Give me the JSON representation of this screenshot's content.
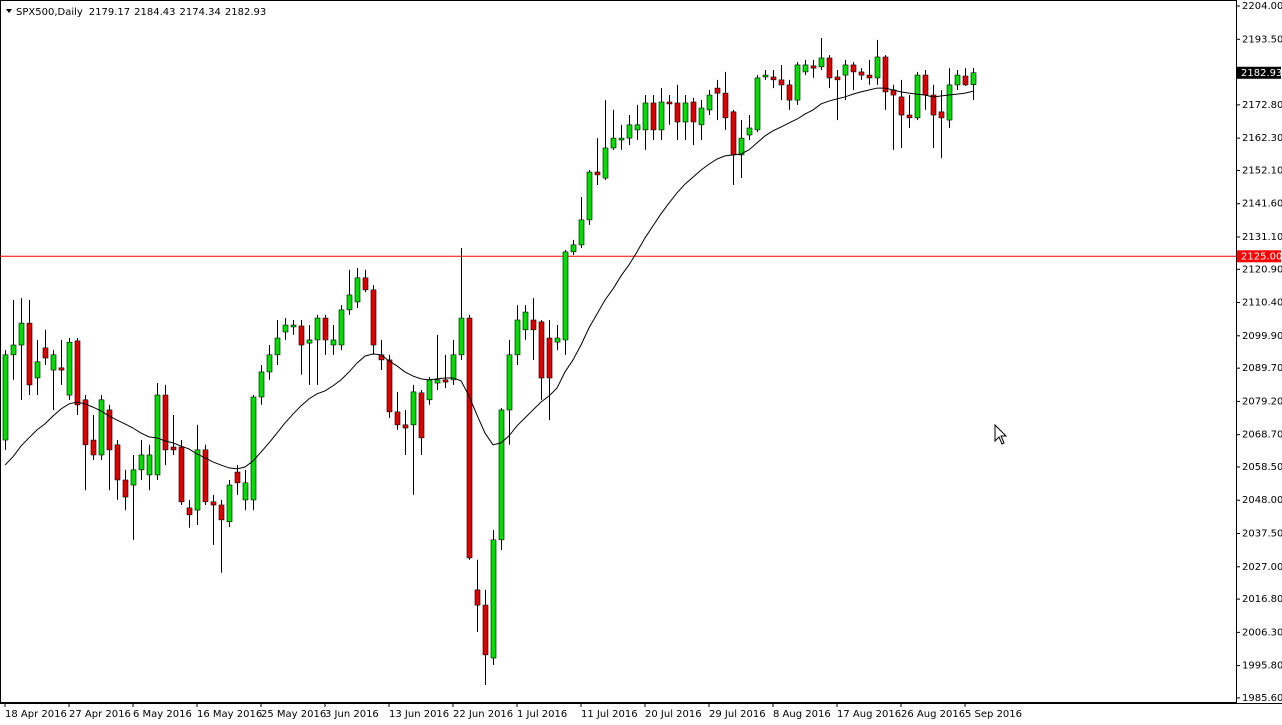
{
  "chart_data": {
    "type": "candlestick",
    "title": "SPX500,Daily",
    "up_color": "#00dd00",
    "down_color": "#dd0000",
    "wick_color": "#000000",
    "categories": [
      "18 Apr 2016",
      null,
      null,
      null,
      null,
      null,
      null,
      null,
      "27 Apr 2016",
      null,
      null,
      null,
      null,
      null,
      null,
      null,
      "6 May 2016",
      null,
      null,
      null,
      null,
      null,
      null,
      null,
      "16 May 2016",
      null,
      null,
      null,
      null,
      null,
      null,
      null,
      "25 May 2016",
      null,
      null,
      null,
      null,
      null,
      null,
      null,
      "3 Jun 2016",
      null,
      null,
      null,
      null,
      null,
      null,
      null,
      "13 Jun 2016",
      null,
      null,
      null,
      null,
      null,
      null,
      null,
      "22 Jun 2016",
      null,
      null,
      null,
      null,
      null,
      null,
      null,
      "1 Jul 2016",
      null,
      null,
      null,
      null,
      null,
      null,
      null,
      "11 Jul 2016",
      null,
      null,
      null,
      null,
      null,
      null,
      null,
      "20 Jul 2016",
      null,
      null,
      null,
      null,
      null,
      null,
      null,
      "29 Jul 2016",
      null,
      null,
      null,
      null,
      null,
      null,
      null,
      "8 Aug 2016",
      null,
      null,
      null,
      null,
      null,
      null,
      null,
      "17 Aug 2016",
      null,
      null,
      null,
      null,
      null,
      null,
      null,
      "26 Aug 2016",
      null,
      null,
      null,
      null,
      null,
      null,
      null,
      "5 Sep 2016",
      null
    ],
    "open": [
      2067.0,
      2093.9,
      2097.0,
      2103.9,
      2086.6,
      2096.1,
      2089.1,
      2089.8,
      2081.2,
      2098.3,
      2079.7,
      2067.0,
      2062.3,
      2076.5,
      2065.5,
      2054.4,
      2052.8,
      2057.6,
      2056.0,
      2056.0,
      2081.2,
      2064.8,
      2064.8,
      2045.6,
      2044.9,
      2063.9,
      2047.5,
      2046.5,
      2041.2,
      2056.9,
      2048.1,
      2048.1,
      2080.6,
      2088.5,
      2093.9,
      2101.1,
      2102.7,
      2103.0,
      2097.6,
      2098.6,
      2105.5,
      2097.0,
      2097.0,
      2108.1,
      2110.6,
      2118.2,
      2114.4,
      2093.9,
      2092.3,
      2075.9,
      2071.8,
      2071.8,
      2081.9,
      2079.7,
      2085.0,
      2086.0,
      2086.0,
      2093.9,
      2105.5,
      2019.7,
      2014.9,
      1998.2,
      2035.5,
      2076.5,
      2093.9,
      2101.8,
      2104.9,
      2104.3,
      2099.2,
      2097.9,
      2098.6,
      2126.4,
      2128.6,
      2136.5,
      2151.6,
      2149.7,
      2159.2,
      2161.7,
      2162.3,
      2164.9,
      2164.9,
      2173.4,
      2164.9,
      2173.7,
      2173.4,
      2167.4,
      2173.7,
      2166.5,
      2171.2,
      2178.1,
      2176.5,
      2170.6,
      2157.0,
      2163.3,
      2164.9,
      2181.6,
      2181.6,
      2180.7,
      2179.1,
      2174.3,
      2183.2,
      2185.1,
      2184.8,
      2187.6,
      2181.6,
      2182.2,
      2185.4,
      2183.2,
      2182.2,
      2181.3,
      2187.9,
      2177.5,
      2175.3,
      2169.6,
      2168.7,
      2182.2,
      2175.9,
      2170.6,
      2168.0,
      2179.1,
      2181.9,
      2179.17
    ],
    "high": [
      2095.4,
      2111.2,
      2111.8,
      2111.2,
      2098.6,
      2101.8,
      2095.4,
      2098.6,
      2099.2,
      2099.2,
      2081.2,
      2074.9,
      2081.2,
      2078.1,
      2067.0,
      2057.6,
      2062.3,
      2067.0,
      2065.5,
      2085.0,
      2084.4,
      2074.9,
      2067.0,
      2048.1,
      2071.8,
      2065.5,
      2049.7,
      2048.1,
      2054.4,
      2059.1,
      2057.6,
      2081.2,
      2090.7,
      2097.0,
      2104.9,
      2105.5,
      2104.9,
      2104.9,
      2103.3,
      2106.5,
      2106.5,
      2103.3,
      2109.6,
      2120.7,
      2121.3,
      2120.7,
      2115.9,
      2098.6,
      2093.9,
      2082.2,
      2076.5,
      2084.4,
      2082.8,
      2086.9,
      2100.2,
      2093.9,
      2098.6,
      2127.6,
      2106.5,
      2029.2,
      2019.7,
      2038.6,
      2077.1,
      2098.6,
      2109.6,
      2109.6,
      2111.8,
      2104.9,
      2104.9,
      2103.3,
      2127.0,
      2130.2,
      2143.7,
      2152.2,
      2162.3,
      2174.3,
      2171.2,
      2166.5,
      2169.6,
      2172.8,
      2175.9,
      2175.9,
      2178.1,
      2175.9,
      2179.1,
      2175.9,
      2175.0,
      2174.3,
      2177.5,
      2180.7,
      2183.2,
      2171.2,
      2168.0,
      2169.6,
      2182.2,
      2183.8,
      2183.8,
      2185.4,
      2180.7,
      2186.3,
      2187.0,
      2187.0,
      2193.9,
      2188.5,
      2183.8,
      2187.0,
      2186.3,
      2184.4,
      2187.0,
      2193.3,
      2188.5,
      2179.1,
      2180.7,
      2175.9,
      2183.2,
      2183.8,
      2179.1,
      2177.5,
      2184.4,
      2183.8,
      2184.4,
      2184.43
    ],
    "low": [
      2063.9,
      2086.0,
      2079.7,
      2081.2,
      2081.2,
      2090.7,
      2076.5,
      2084.4,
      2079.7,
      2074.9,
      2051.2,
      2060.7,
      2060.7,
      2051.2,
      2048.1,
      2044.9,
      2035.5,
      2054.4,
      2051.2,
      2054.4,
      2059.1,
      2062.3,
      2046.5,
      2039.3,
      2040.2,
      2046.5,
      2033.9,
      2025.1,
      2039.6,
      2049.7,
      2044.9,
      2044.9,
      2078.1,
      2086.0,
      2090.7,
      2098.6,
      2100.2,
      2087.6,
      2084.4,
      2084.4,
      2093.9,
      2093.9,
      2095.4,
      2106.5,
      2108.7,
      2113.7,
      2093.9,
      2089.1,
      2074.0,
      2070.2,
      2062.3,
      2049.7,
      2062.3,
      2078.1,
      2082.8,
      2083.4,
      2084.4,
      2092.3,
      2029.2,
      2006.4,
      1989.7,
      1996.0,
      2032.3,
      2065.5,
      2090.7,
      2098.6,
      2092.3,
      2079.7,
      2073.3,
      2095.4,
      2093.9,
      2125.4,
      2127.6,
      2134.9,
      2147.5,
      2149.1,
      2158.6,
      2158.6,
      2160.1,
      2161.7,
      2158.6,
      2161.7,
      2161.7,
      2166.5,
      2161.7,
      2161.7,
      2160.1,
      2161.7,
      2169.6,
      2168.0,
      2164.9,
      2147.5,
      2149.7,
      2161.7,
      2164.2,
      2180.7,
      2178.1,
      2174.3,
      2171.2,
      2172.8,
      2182.2,
      2181.3,
      2183.8,
      2178.1,
      2168.0,
      2174.3,
      2177.5,
      2180.7,
      2179.1,
      2179.1,
      2171.2,
      2158.6,
      2159.2,
      2165.5,
      2168.0,
      2171.2,
      2159.2,
      2156.0,
      2165.5,
      2177.5,
      2178.8,
      2174.34
    ],
    "close": [
      2093.9,
      2097.0,
      2103.9,
      2084.4,
      2091.7,
      2092.9,
      2093.9,
      2089.1,
      2097.9,
      2078.1,
      2065.5,
      2062.3,
      2079.7,
      2063.9,
      2054.4,
      2049.0,
      2057.6,
      2062.3,
      2062.3,
      2081.2,
      2063.9,
      2063.9,
      2047.5,
      2043.4,
      2063.9,
      2047.5,
      2046.5,
      2041.8,
      2052.8,
      2053.5,
      2053.5,
      2080.6,
      2088.5,
      2093.9,
      2099.2,
      2103.3,
      2103.3,
      2097.0,
      2098.6,
      2105.5,
      2098.6,
      2098.6,
      2108.1,
      2112.8,
      2118.2,
      2114.4,
      2097.0,
      2092.3,
      2075.9,
      2071.8,
      2070.8,
      2082.2,
      2067.7,
      2086.0,
      2086.0,
      2085.3,
      2093.9,
      2105.5,
      2029.8,
      2014.9,
      1999.2,
      2035.5,
      2076.5,
      2093.9,
      2104.9,
      2107.4,
      2101.8,
      2086.6,
      2086.6,
      2099.2,
      2126.4,
      2128.6,
      2136.5,
      2151.6,
      2150.7,
      2159.2,
      2162.3,
      2162.3,
      2166.5,
      2166.5,
      2173.4,
      2164.9,
      2173.7,
      2173.1,
      2167.4,
      2173.4,
      2167.4,
      2171.8,
      2175.9,
      2176.5,
      2168.7,
      2157.0,
      2162.3,
      2165.5,
      2181.3,
      2182.2,
      2180.7,
      2179.1,
      2174.3,
      2185.4,
      2185.4,
      2184.4,
      2187.6,
      2181.3,
      2180.7,
      2185.4,
      2183.2,
      2182.2,
      2181.3,
      2187.9,
      2176.9,
      2175.9,
      2169.6,
      2168.7,
      2182.2,
      2175.9,
      2169.6,
      2168.7,
      2179.1,
      2182.2,
      2179.1,
      2182.93
    ],
    "line": {
      "color": "#000000",
      "values": [
        2059.1,
        2061.7,
        2065.1,
        2067.7,
        2070.2,
        2072.1,
        2074.6,
        2076.8,
        2078.4,
        2079.0,
        2078.4,
        2077.4,
        2076.2,
        2074.6,
        2073.3,
        2072.1,
        2070.8,
        2069.2,
        2068.0,
        2067.7,
        2066.7,
        2066.1,
        2065.1,
        2064.2,
        2062.6,
        2061.4,
        2060.1,
        2059.1,
        2058.2,
        2057.9,
        2058.5,
        2060.4,
        2063.2,
        2066.1,
        2069.2,
        2072.4,
        2075.2,
        2077.8,
        2080.0,
        2081.6,
        2082.5,
        2084.1,
        2086.0,
        2088.5,
        2091.3,
        2093.5,
        2094.2,
        2093.9,
        2092.0,
        2090.4,
        2088.5,
        2087.2,
        2086.3,
        2086.0,
        2086.3,
        2086.6,
        2086.6,
        2085.7,
        2080.9,
        2074.9,
        2069.2,
        2065.5,
        2066.1,
        2068.3,
        2071.5,
        2074.0,
        2076.5,
        2079.0,
        2080.9,
        2083.4,
        2088.5,
        2092.3,
        2097.0,
        2102.4,
        2106.8,
        2111.2,
        2114.7,
        2118.8,
        2122.3,
        2126.4,
        2130.8,
        2134.6,
        2138.4,
        2141.8,
        2145.0,
        2147.8,
        2150.0,
        2152.2,
        2154.1,
        2155.7,
        2156.7,
        2157.0,
        2157.3,
        2158.6,
        2160.8,
        2163.0,
        2164.6,
        2165.8,
        2167.1,
        2168.3,
        2169.9,
        2171.2,
        2173.1,
        2174.0,
        2174.7,
        2175.3,
        2176.2,
        2176.9,
        2177.5,
        2178.1,
        2178.1,
        2177.5,
        2176.9,
        2176.5,
        2176.2,
        2175.9,
        2175.3,
        2175.6,
        2175.9,
        2176.2,
        2176.5,
        2177.1
      ]
    },
    "hline": {
      "value": 2125,
      "label": "2125.00",
      "color": "#ff0000"
    },
    "ylim": [
      1984.0,
      2205.9
    ],
    "yticks": [
      {
        "value": 2204,
        "label": "2204.00"
      },
      {
        "value": 2193.5,
        "label": "2193.50"
      },
      {
        "value": 2172.8,
        "label": "2172.80"
      },
      {
        "value": 2162.3,
        "label": "2162.30"
      },
      {
        "value": 2152.1,
        "label": "2152.10"
      },
      {
        "value": 2141.6,
        "label": "2141.60"
      },
      {
        "value": 2131.1,
        "label": "2131.10"
      },
      {
        "value": 2120.9,
        "label": "2120.90"
      },
      {
        "value": 2110.4,
        "label": "2110.40"
      },
      {
        "value": 2099.9,
        "label": "2099.90"
      },
      {
        "value": 2089.7,
        "label": "2089.70"
      },
      {
        "value": 2079.2,
        "label": "2079.20"
      },
      {
        "value": 2068.7,
        "label": "2068.70"
      },
      {
        "value": 2058.5,
        "label": "2058.50"
      },
      {
        "value": 2048,
        "label": "2048.00"
      },
      {
        "value": 2037.5,
        "label": "2037.50"
      },
      {
        "value": 2027,
        "label": "2027.00"
      },
      {
        "value": 2016.8,
        "label": "2016.80"
      },
      {
        "value": 2006.3,
        "label": "2006.30"
      },
      {
        "value": 1995.8,
        "label": "1995.80"
      },
      {
        "value": 1985.6,
        "label": "1985.60"
      }
    ],
    "grid": false
  }
}
